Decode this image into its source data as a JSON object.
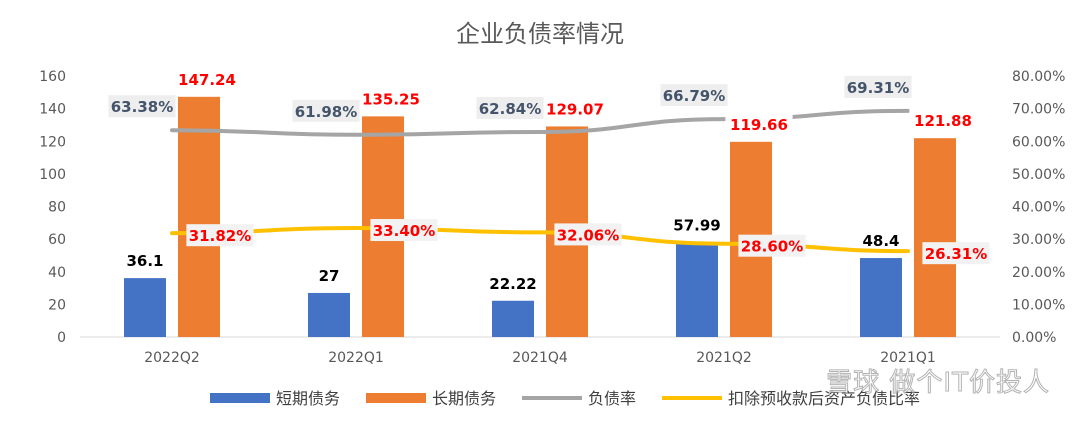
{
  "chart_data": {
    "type": "bar",
    "title": "企业负债率情况",
    "categories": [
      "2022Q2",
      "2022Q1",
      "2021Q4",
      "2021Q2",
      "2021Q1"
    ],
    "series": [
      {
        "name": "短期债务",
        "kind": "bar",
        "axis": "left",
        "color": "#4472C4",
        "values": [
          36.1,
          27,
          22.22,
          57.99,
          48.4
        ],
        "labels": [
          "36.1",
          "27",
          "22.22",
          "57.99",
          "48.4"
        ]
      },
      {
        "name": "长期债务",
        "kind": "bar",
        "axis": "left",
        "color": "#ED7D31",
        "values": [
          147.24,
          135.25,
          129.07,
          119.66,
          121.88
        ],
        "labels": [
          "147.24",
          "135.25",
          "129.07",
          "119.66",
          "121.88"
        ]
      },
      {
        "name": "负债率",
        "kind": "line",
        "axis": "right",
        "color": "#A5A5A5",
        "values": [
          63.38,
          61.98,
          62.84,
          66.79,
          69.31
        ],
        "labels": [
          "63.38%",
          "61.98%",
          "62.84%",
          "66.79%",
          "69.31%"
        ]
      },
      {
        "name": "扣除预收款后资产负债比率",
        "kind": "line",
        "axis": "right",
        "color": "#FFC000",
        "values": [
          31.82,
          33.4,
          32.06,
          28.6,
          26.31
        ],
        "labels": [
          "31.82%",
          "33.40%",
          "32.06%",
          "28.60%",
          "26.31%"
        ]
      }
    ],
    "y_left": {
      "min": 0,
      "max": 160,
      "step": 20,
      "ticks": [
        "0",
        "20",
        "40",
        "60",
        "80",
        "100",
        "120",
        "140",
        "160"
      ]
    },
    "y_right": {
      "min": 0,
      "max": 80,
      "step": 10,
      "ticks": [
        "0.00%",
        "10.00%",
        "20.00%",
        "30.00%",
        "40.00%",
        "50.00%",
        "60.00%",
        "70.00%",
        "80.00%"
      ]
    },
    "grid": false,
    "legend": "bottom",
    "watermark": "雪球 做个IT价投人"
  }
}
